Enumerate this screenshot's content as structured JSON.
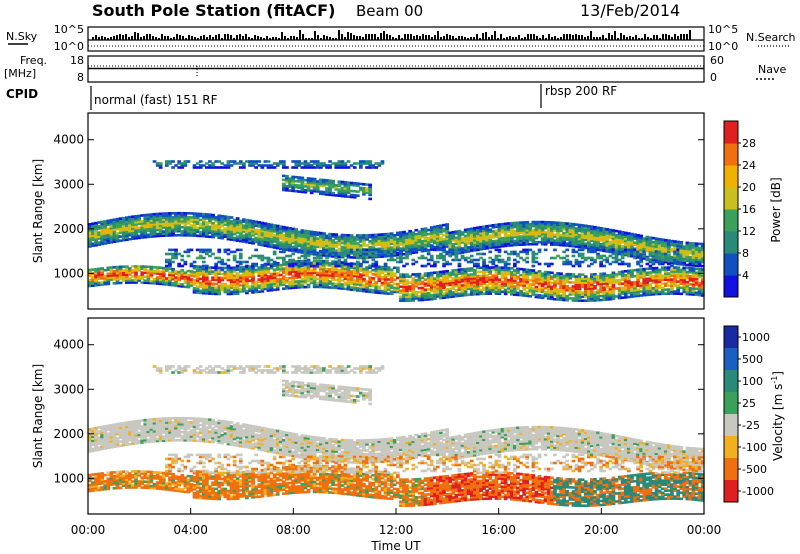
{
  "header": {
    "title": "South Pole Station (fitACF)",
    "beam": "Beam 00",
    "date": "13/Feb/2014"
  },
  "top_panels": {
    "nsky_label": "N.Sky",
    "nsky_ticks": [
      "10^5",
      "10^0"
    ],
    "nsearch_label": "N.Search",
    "nsearch_ticks": [
      "10^5",
      "10^0"
    ],
    "freq_label_1": "Freq.",
    "freq_label_2": "[MHz]",
    "freq_ticks": [
      "18",
      "8"
    ],
    "nave_label": "Nave",
    "nave_ticks": [
      "60",
      "0"
    ],
    "cpid_label": "CPID",
    "cpid_segments": [
      {
        "text": "normal (fast) 151 RF",
        "start_hour": 0
      },
      {
        "text": "rbsp 200 RF",
        "start_hour": 18
      }
    ]
  },
  "chart_data": [
    {
      "type": "heatmap",
      "name": "power",
      "ylabel": "Slant Range [km]",
      "ylim": [
        200,
        4600
      ],
      "yticks": [
        1000,
        2000,
        3000,
        4000
      ],
      "xlim": [
        0,
        24
      ],
      "colorbar_label": "Power [dB]",
      "colorbar_ticks": [
        4,
        8,
        12,
        16,
        20,
        24,
        28
      ],
      "colorbar_colors": [
        "#1010e0",
        "#1050c0",
        "#2a8a7a",
        "#3aa05a",
        "#c8c020",
        "#f0b000",
        "#f07010",
        "#e02020"
      ]
    },
    {
      "type": "heatmap",
      "name": "velocity",
      "ylabel": "Slant Range [km]",
      "ylim": [
        200,
        4600
      ],
      "yticks": [
        1000,
        2000,
        3000,
        4000
      ],
      "xlim": [
        0,
        24
      ],
      "xticks": [
        "00:00",
        "04:00",
        "08:00",
        "12:00",
        "16:00",
        "20:00",
        "00:00"
      ],
      "xlabel": "Time UT",
      "colorbar_label": "Velocity [m s^-1]",
      "colorbar_ticks": [
        "1000",
        "500",
        "100",
        "25",
        "-25",
        "-100",
        "-500",
        "-1000"
      ],
      "colorbar_colors": [
        "#1a2aa0",
        "#1a60c0",
        "#2a8a7a",
        "#3aa05a",
        "#c8c8c0",
        "#f0b020",
        "#f07010",
        "#e02020"
      ]
    }
  ]
}
